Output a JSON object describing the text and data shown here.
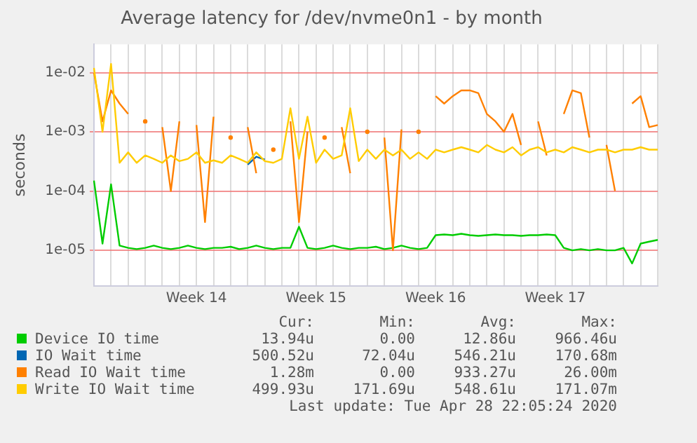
{
  "chart_data": {
    "type": "line",
    "title": "Average latency for /dev/nvme0n1 - by month",
    "ylabel": "seconds",
    "log": "y",
    "grid": true,
    "legend": "bottom",
    "marker": "none",
    "line_style": "solid",
    "ylim": [
      2.5e-06,
      0.03
    ],
    "yticks": [
      {
        "value": 1e-05,
        "label": "1e-05"
      },
      {
        "value": 0.0001,
        "label": "1e-04"
      },
      {
        "value": 0.001,
        "label": "1e-03"
      },
      {
        "value": 0.01,
        "label": "1e-02"
      }
    ],
    "categories": [
      null,
      null,
      null,
      null,
      null,
      null,
      null,
      null,
      null,
      null,
      null,
      null,
      "Week 14",
      null,
      null,
      null,
      null,
      null,
      null,
      null,
      null,
      null,
      null,
      null,
      null,
      null,
      "Week 15",
      null,
      null,
      null,
      null,
      null,
      null,
      null,
      null,
      null,
      null,
      null,
      null,
      null,
      "Week 16",
      null,
      null,
      null,
      null,
      null,
      null,
      null,
      null,
      null,
      null,
      null,
      null,
      null,
      "Week 17",
      null,
      null,
      null,
      null,
      null,
      null,
      null,
      null,
      null,
      null,
      null,
      null
    ],
    "series": [
      {
        "name": "Device IO time",
        "color": "#00cc00",
        "values": [
          0.00015,
          1.3e-05,
          0.00013,
          1.2e-05,
          1.1e-05,
          1.05e-05,
          1.1e-05,
          1.2e-05,
          1.1e-05,
          1.05e-05,
          1.1e-05,
          1.2e-05,
          1.1e-05,
          1.05e-05,
          1.1e-05,
          1.1e-05,
          1.15e-05,
          1.05e-05,
          1.1e-05,
          1.2e-05,
          1.1e-05,
          1.05e-05,
          1.1e-05,
          1.1e-05,
          2.5e-05,
          1.1e-05,
          1.05e-05,
          1.1e-05,
          1.2e-05,
          1.1e-05,
          1.05e-05,
          1.1e-05,
          1.1e-05,
          1.15e-05,
          1.05e-05,
          1.1e-05,
          1.2e-05,
          1.1e-05,
          1.05e-05,
          1.1e-05,
          1.8e-05,
          1.85e-05,
          1.8e-05,
          1.9e-05,
          1.8e-05,
          1.75e-05,
          1.8e-05,
          1.85e-05,
          1.8e-05,
          1.8e-05,
          1.75e-05,
          1.8e-05,
          1.8e-05,
          1.85e-05,
          1.8e-05,
          1.1e-05,
          1e-05,
          1.05e-05,
          1e-05,
          1.05e-05,
          1e-05,
          1e-05,
          1.1e-05,
          6e-06,
          1.3e-05,
          1.4e-05,
          1.5e-05
        ]
      },
      {
        "name": "IO Wait time",
        "color": "#0066b3",
        "values": [
          null,
          null,
          null,
          null,
          null,
          null,
          null,
          null,
          null,
          null,
          null,
          null,
          null,
          null,
          null,
          null,
          null,
          null,
          0.00028,
          0.00038,
          0.00034,
          null,
          null,
          null,
          null,
          null,
          null,
          null,
          null,
          null,
          null,
          null,
          null,
          null,
          null,
          null,
          null,
          null,
          null,
          null,
          null,
          null,
          null,
          null,
          null,
          null,
          null,
          null,
          null,
          null,
          null,
          null,
          null,
          null,
          null,
          null,
          null,
          null,
          null,
          null,
          null,
          null,
          null,
          null,
          null,
          null,
          null
        ]
      },
      {
        "name": "Read IO Wait time",
        "color": "#ff8000",
        "values": [
          0.01,
          0.0015,
          0.005,
          0.003,
          0.002,
          null,
          0.0015,
          null,
          0.0012,
          0.0001,
          0.0015,
          null,
          0.0013,
          3e-05,
          0.0018,
          null,
          0.0008,
          null,
          0.0012,
          0.0002,
          null,
          0.0005,
          null,
          0.0015,
          3e-05,
          0.001,
          null,
          0.0008,
          null,
          0.0012,
          0.0002,
          null,
          0.001,
          null,
          0.0008,
          1e-05,
          0.0011,
          null,
          0.001,
          null,
          0.004,
          0.003,
          0.004,
          0.005,
          0.005,
          0.0045,
          0.002,
          0.0015,
          0.001,
          0.002,
          0.0006,
          null,
          0.0015,
          0.0004,
          null,
          0.002,
          0.005,
          0.0045,
          0.0008,
          null,
          0.0006,
          0.0001,
          null,
          0.003,
          0.004,
          0.0012,
          0.0013
        ]
      },
      {
        "name": "Write IO Wait time",
        "color": "#ffcc00",
        "values": [
          0.012,
          0.001,
          0.014,
          0.0003,
          0.00045,
          0.0003,
          0.0004,
          0.00035,
          0.0003,
          0.0004,
          0.00032,
          0.00035,
          0.00045,
          0.0003,
          0.00033,
          0.0003,
          0.0004,
          0.00035,
          0.0003,
          0.00045,
          0.00032,
          0.0003,
          0.00035,
          0.0025,
          0.00035,
          0.0018,
          0.0003,
          0.0005,
          0.00035,
          0.0004,
          0.0025,
          0.00032,
          0.0005,
          0.00035,
          0.0005,
          0.0004,
          0.0005,
          0.00035,
          0.00045,
          0.00035,
          0.0005,
          0.00045,
          0.0005,
          0.00055,
          0.0005,
          0.00045,
          0.0006,
          0.0005,
          0.00045,
          0.00055,
          0.0004,
          0.0005,
          0.00055,
          0.00045,
          0.0005,
          0.00045,
          0.00055,
          0.0005,
          0.00045,
          0.0005,
          0.0005,
          0.00045,
          0.0005,
          0.0005,
          0.00055,
          0.0005,
          0.0005
        ]
      }
    ],
    "annotations": [
      "Cur:",
      "Min:",
      "Avg:",
      "Max:",
      "13.94u",
      "0.00",
      "12.86u",
      "966.46u",
      "500.52u",
      "72.04u",
      "546.21u",
      "170.68m",
      "1.28m",
      "0.00",
      "933.27u",
      "26.00m",
      "499.93u",
      "171.69u",
      "548.61u",
      "171.07m",
      "Last update: Tue Apr 28 22:05:24 2020"
    ]
  }
}
